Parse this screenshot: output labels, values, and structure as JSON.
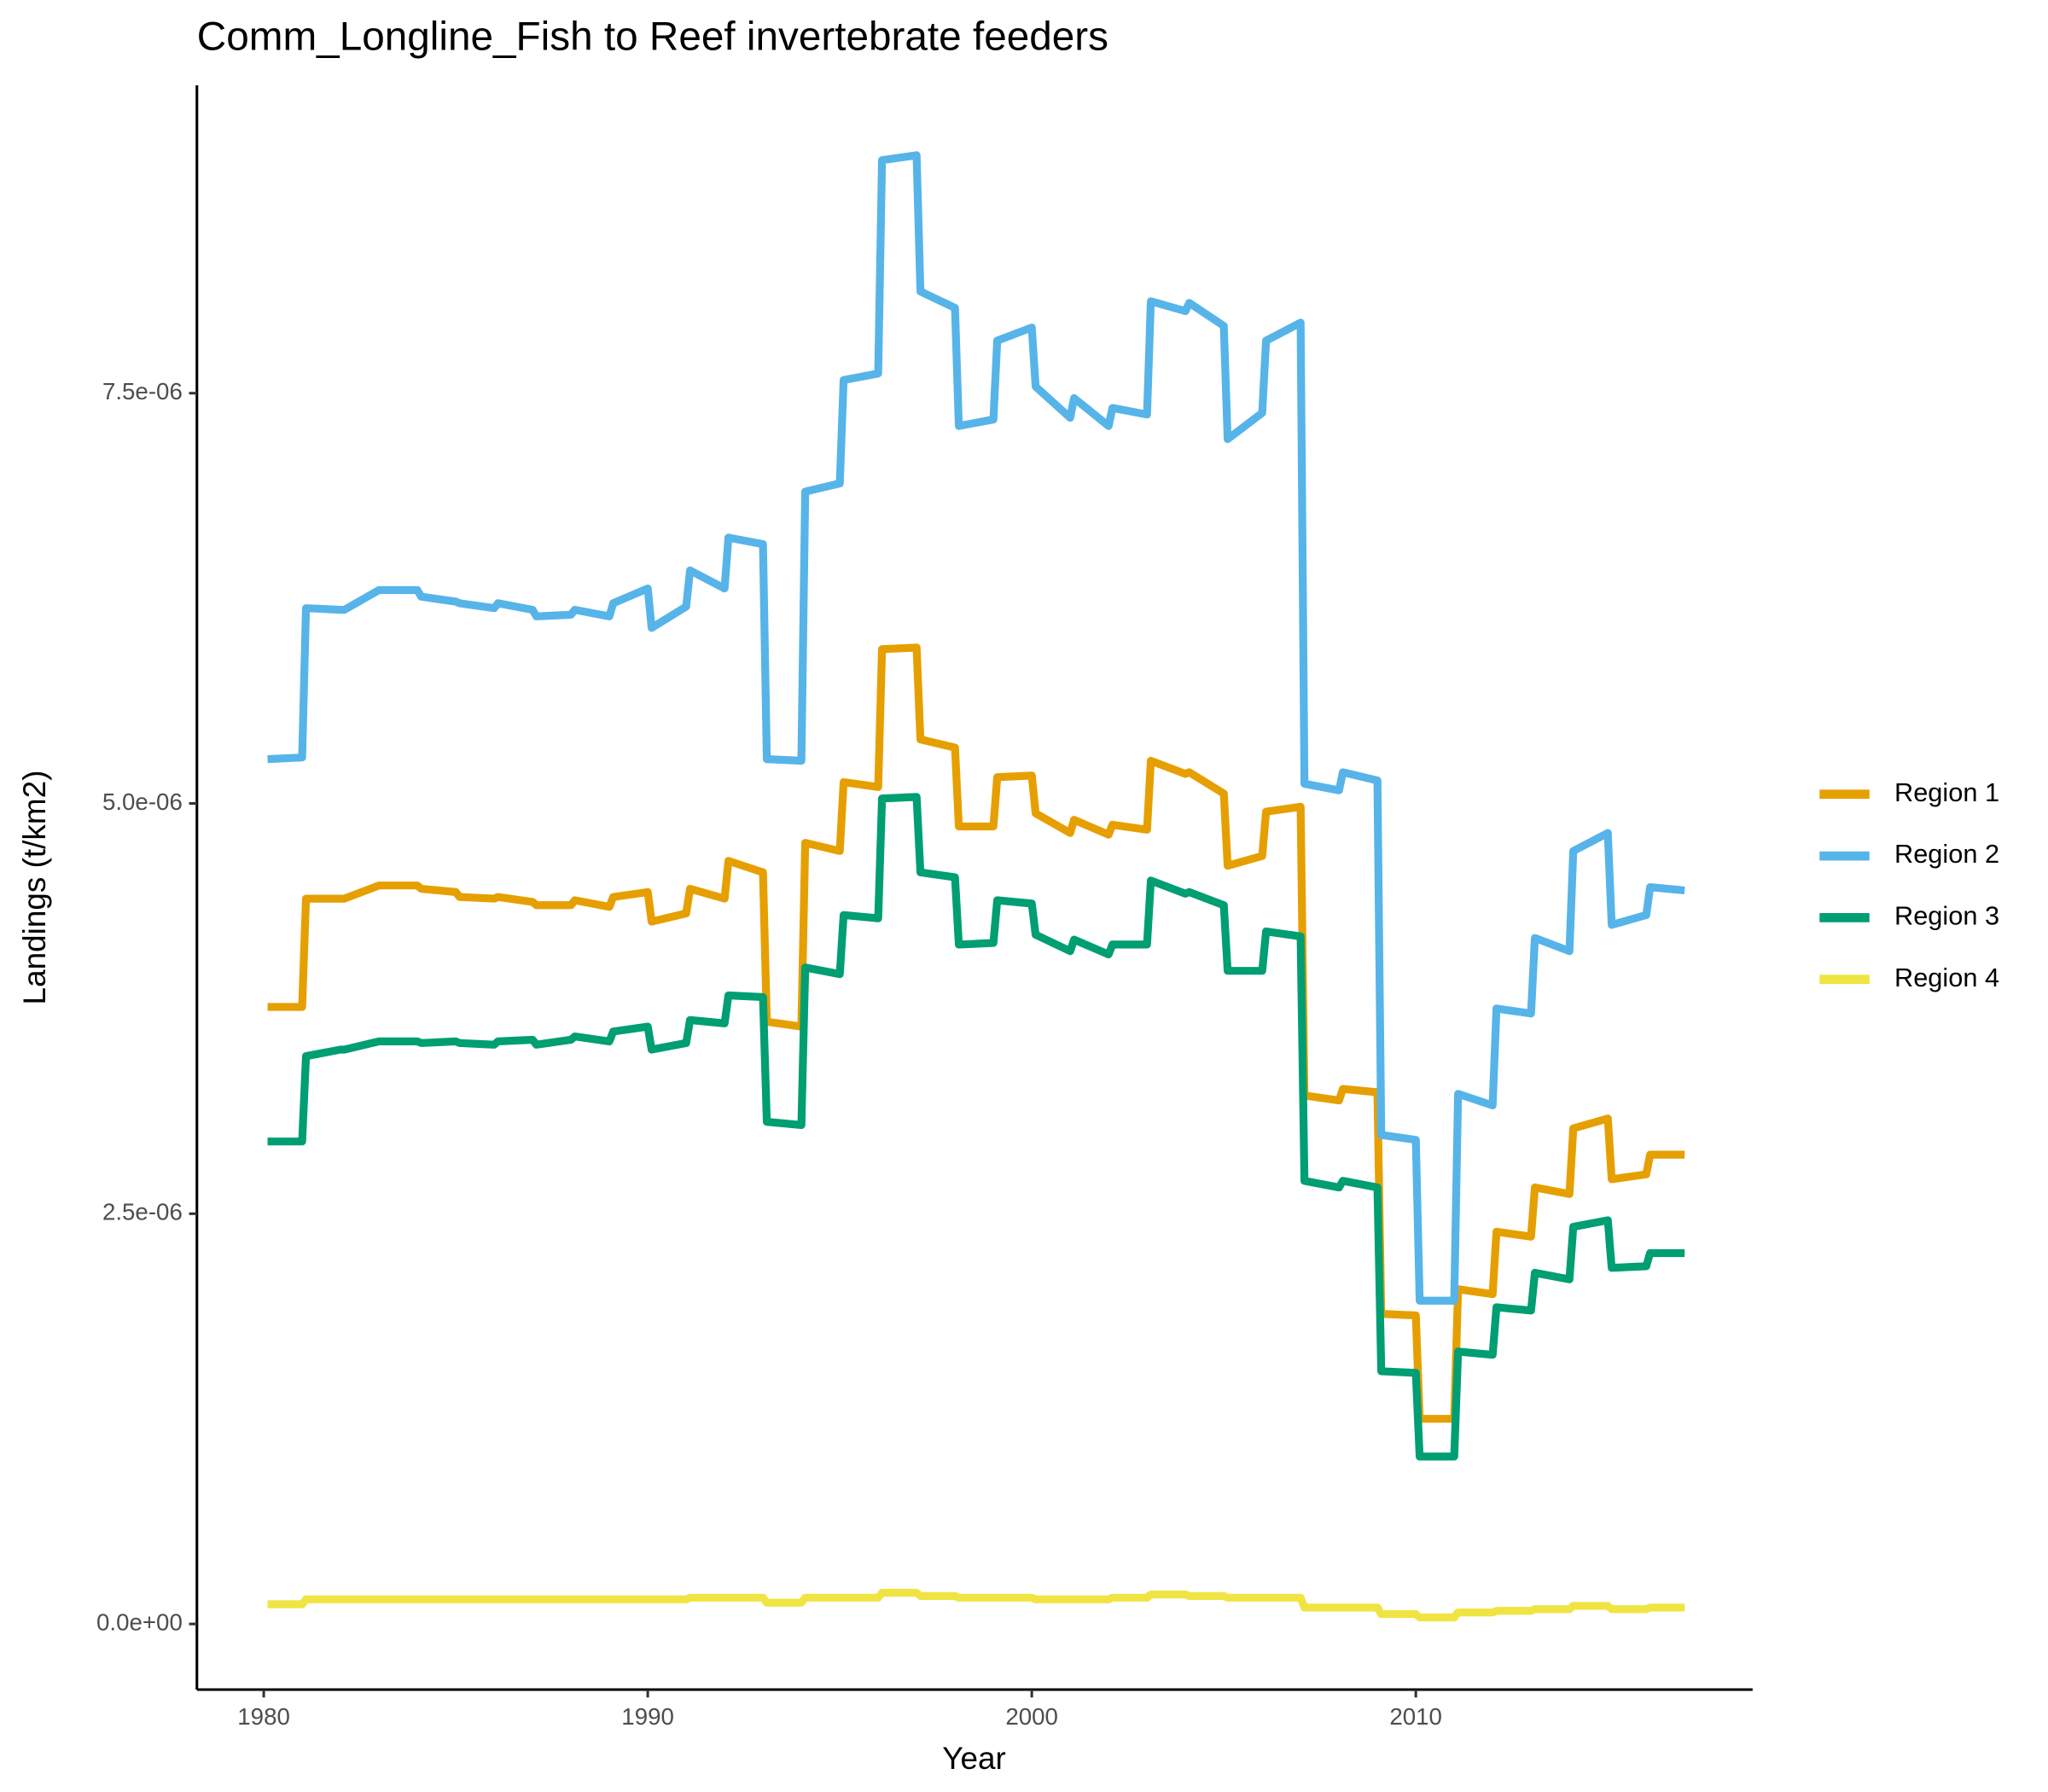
{
  "chart_data": {
    "type": "line",
    "title": "Comm_Longline_Fish to Reef invertebrate feeders",
    "x_label": "Year",
    "y_label": "Landings (t/km2)",
    "xlim": [
      1978.26,
      2018.77
    ],
    "ylim": [
      -4e-07,
      9.376e-06
    ],
    "xticks": [
      1980,
      1990,
      2000,
      2010
    ],
    "yticks": [
      {
        "value": 0,
        "label": "0.0e+00"
      },
      {
        "value": 2.5e-06,
        "label": "2.5e-06"
      },
      {
        "value": 5e-06,
        "label": "5.0e-06"
      },
      {
        "value": 7.5e-06,
        "label": "7.5e-06"
      }
    ],
    "grid": false,
    "legend": "right",
    "x": [
      1980.1,
      1981,
      1981.1,
      1982,
      1982.1,
      1983,
      1983.1,
      1984,
      1984.1,
      1985,
      1985.1,
      1986,
      1986.1,
      1987,
      1987.1,
      1988,
      1988.1,
      1989,
      1989.1,
      1990,
      1990.1,
      1991,
      1991.1,
      1992,
      1992.1,
      1993,
      1993.1,
      1994,
      1994.1,
      1995,
      1995.1,
      1996,
      1996.1,
      1997,
      1997.1,
      1998,
      1998.1,
      1999,
      1999.1,
      2000,
      2000.1,
      2001,
      2001.1,
      2002,
      2002.1,
      2003,
      2003.1,
      2004,
      2004.1,
      2005,
      2005.1,
      2006,
      2006.1,
      2007,
      2007.1,
      2008,
      2008.1,
      2009,
      2009.1,
      2010,
      2010.1,
      2011,
      2011.1,
      2012,
      2012.1,
      2013,
      2013.1,
      2014,
      2014.1,
      2015,
      2015.1,
      2016,
      2016.1,
      2017
    ],
    "series": [
      {
        "name": "Region 1",
        "color": "#E69F00",
        "values": [
          3.76e-06,
          3.76e-06,
          4.42e-06,
          4.42e-06,
          4.42e-06,
          4.5e-06,
          4.5e-06,
          4.5e-06,
          4.48e-06,
          4.46e-06,
          4.43e-06,
          4.42e-06,
          4.43e-06,
          4.4e-06,
          4.38e-06,
          4.38e-06,
          4.41e-06,
          4.37e-06,
          4.43e-06,
          4.46e-06,
          4.28e-06,
          4.33e-06,
          4.48e-06,
          4.42e-06,
          4.65e-06,
          4.58e-06,
          3.67e-06,
          3.64e-06,
          4.76e-06,
          4.71e-06,
          5.13e-06,
          5.1e-06,
          5.94e-06,
          5.95e-06,
          5.39e-06,
          5.34e-06,
          4.86e-06,
          4.86e-06,
          5.16e-06,
          5.17e-06,
          4.94e-06,
          4.82e-06,
          4.9e-06,
          4.81e-06,
          4.87e-06,
          4.84e-06,
          5.26e-06,
          5.18e-06,
          5.19e-06,
          5.06e-06,
          4.62e-06,
          4.68e-06,
          4.95e-06,
          4.98e-06,
          3.22e-06,
          3.19e-06,
          3.26e-06,
          3.24e-06,
          1.89e-06,
          1.88e-06,
          1.25e-06,
          1.25e-06,
          2.04e-06,
          2.01e-06,
          2.39e-06,
          2.36e-06,
          2.66e-06,
          2.62e-06,
          3.02e-06,
          3.08e-06,
          2.71e-06,
          2.74e-06,
          2.86e-06,
          2.86e-06
        ]
      },
      {
        "name": "Region 2",
        "color": "#56B4E9",
        "values": [
          5.27e-06,
          5.28e-06,
          6.19e-06,
          6.18e-06,
          6.18e-06,
          6.3e-06,
          6.3e-06,
          6.3e-06,
          6.26e-06,
          6.23e-06,
          6.22e-06,
          6.19e-06,
          6.22e-06,
          6.18e-06,
          6.14e-06,
          6.15e-06,
          6.18e-06,
          6.14e-06,
          6.22e-06,
          6.31e-06,
          6.07e-06,
          6.2e-06,
          6.42e-06,
          6.31e-06,
          6.62e-06,
          6.58e-06,
          5.27e-06,
          5.26e-06,
          6.9e-06,
          6.95e-06,
          7.58e-06,
          7.62e-06,
          8.92e-06,
          8.95e-06,
          8.12e-06,
          8.02e-06,
          7.3e-06,
          7.34e-06,
          7.82e-06,
          7.9e-06,
          7.54e-06,
          7.35e-06,
          7.47e-06,
          7.3e-06,
          7.41e-06,
          7.37e-06,
          8.06e-06,
          8e-06,
          8.05e-06,
          7.91e-06,
          7.22e-06,
          7.38e-06,
          7.82e-06,
          7.93e-06,
          5.12e-06,
          5.08e-06,
          5.19e-06,
          5.14e-06,
          2.98e-06,
          2.95e-06,
          1.97e-06,
          1.97e-06,
          3.23e-06,
          3.16e-06,
          3.75e-06,
          3.72e-06,
          4.18e-06,
          4.1e-06,
          4.71e-06,
          4.82e-06,
          4.26e-06,
          4.32e-06,
          4.49e-06,
          4.47e-06
        ]
      },
      {
        "name": "Region 3",
        "color": "#009E73",
        "values": [
          2.94e-06,
          2.94e-06,
          3.46e-06,
          3.5e-06,
          3.5e-06,
          3.55e-06,
          3.55e-06,
          3.55e-06,
          3.54e-06,
          3.55e-06,
          3.54e-06,
          3.53e-06,
          3.55e-06,
          3.56e-06,
          3.53e-06,
          3.56e-06,
          3.58e-06,
          3.55e-06,
          3.61e-06,
          3.64e-06,
          3.5e-06,
          3.54e-06,
          3.68e-06,
          3.66e-06,
          3.83e-06,
          3.82e-06,
          3.06e-06,
          3.04e-06,
          4e-06,
          3.96e-06,
          4.32e-06,
          4.3e-06,
          5.03e-06,
          5.04e-06,
          4.58e-06,
          4.55e-06,
          4.14e-06,
          4.15e-06,
          4.41e-06,
          4.39e-06,
          4.2e-06,
          4.1e-06,
          4.17e-06,
          4.08e-06,
          4.14e-06,
          4.14e-06,
          4.53e-06,
          4.45e-06,
          4.46e-06,
          4.38e-06,
          3.98e-06,
          3.98e-06,
          4.22e-06,
          4.19e-06,
          2.7e-06,
          2.66e-06,
          2.7e-06,
          2.66e-06,
          1.54e-06,
          1.53e-06,
          1.02e-06,
          1.02e-06,
          1.66e-06,
          1.64e-06,
          1.93e-06,
          1.91e-06,
          2.14e-06,
          2.1e-06,
          2.42e-06,
          2.46e-06,
          2.17e-06,
          2.18e-06,
          2.26e-06,
          2.26e-06
        ]
      },
      {
        "name": "Region 4",
        "color": "#F0E442",
        "values": [
          1.2e-07,
          1.2e-07,
          1.5e-07,
          1.5e-07,
          1.5e-07,
          1.5e-07,
          1.5e-07,
          1.5e-07,
          1.5e-07,
          1.5e-07,
          1.5e-07,
          1.5e-07,
          1.5e-07,
          1.5e-07,
          1.5e-07,
          1.5e-07,
          1.5e-07,
          1.5e-07,
          1.5e-07,
          1.5e-07,
          1.5e-07,
          1.5e-07,
          1.6e-07,
          1.6e-07,
          1.6e-07,
          1.6e-07,
          1.3e-07,
          1.3e-07,
          1.6e-07,
          1.6e-07,
          1.6e-07,
          1.6e-07,
          1.9e-07,
          1.9e-07,
          1.7e-07,
          1.7e-07,
          1.6e-07,
          1.6e-07,
          1.6e-07,
          1.6e-07,
          1.5e-07,
          1.5e-07,
          1.5e-07,
          1.5e-07,
          1.6e-07,
          1.6e-07,
          1.8e-07,
          1.8e-07,
          1.7e-07,
          1.7e-07,
          1.6e-07,
          1.6e-07,
          1.6e-07,
          1.6e-07,
          1e-07,
          1e-07,
          1e-07,
          1e-07,
          6e-08,
          6e-08,
          4e-08,
          4e-08,
          7e-08,
          7e-08,
          8e-08,
          8e-08,
          9e-08,
          9e-08,
          1.1e-07,
          1.1e-07,
          9e-08,
          9e-08,
          1e-07,
          1e-07
        ]
      }
    ]
  }
}
